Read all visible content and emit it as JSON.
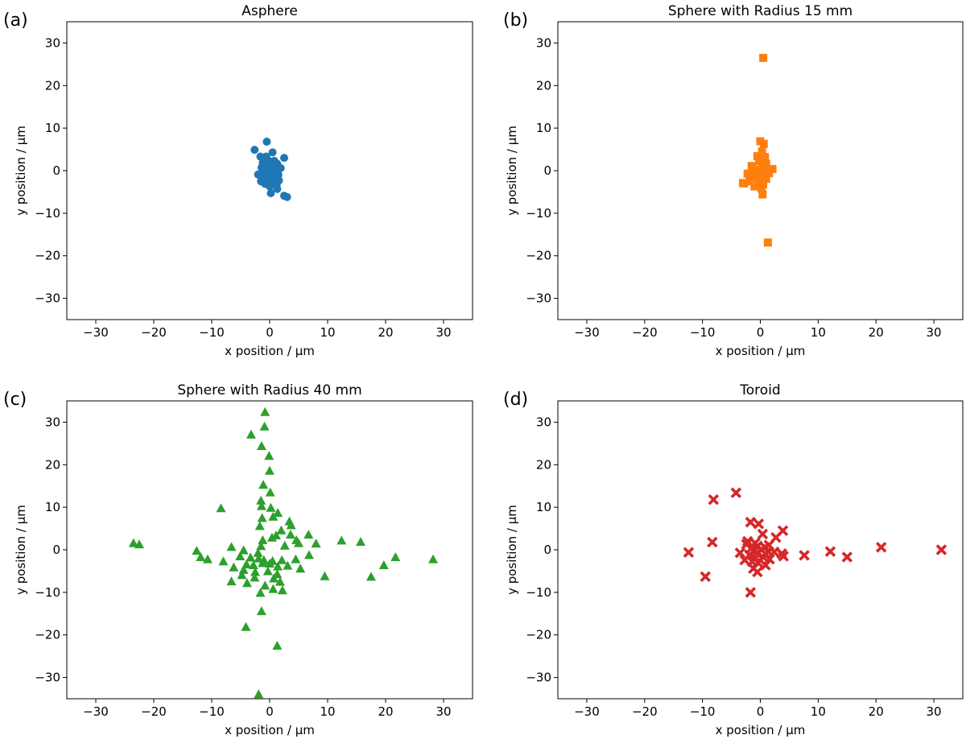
{
  "chart_data": [
    {
      "panel_label": "(a)",
      "type": "scatter",
      "title": "Asphere",
      "xlabel": "x position / µm",
      "ylabel": "y position / µm",
      "xlim": [
        -35,
        35
      ],
      "ylim": [
        -35,
        35
      ],
      "xticks": [
        -30,
        -20,
        -10,
        0,
        10,
        20,
        30
      ],
      "yticks": [
        -30,
        -20,
        -10,
        0,
        10,
        20,
        30
      ],
      "marker": "circle",
      "color": "#1f77b4",
      "points": [
        [
          -0.5,
          6.8
        ],
        [
          -2.6,
          4.9
        ],
        [
          0.5,
          4.3
        ],
        [
          -1.6,
          3.3
        ],
        [
          -0.6,
          3.3
        ],
        [
          2.5,
          3.0
        ],
        [
          -0.3,
          2.5
        ],
        [
          0.8,
          2.3
        ],
        [
          -1.2,
          1.9
        ],
        [
          1.3,
          1.6
        ],
        [
          -0.2,
          1.3
        ],
        [
          0.5,
          1.0
        ],
        [
          -1.4,
          0.7
        ],
        [
          1.9,
          0.6
        ],
        [
          -0.7,
          0.4
        ],
        [
          0.3,
          0.2
        ],
        [
          -0.1,
          0.0
        ],
        [
          1.0,
          -0.1
        ],
        [
          -1.1,
          -0.3
        ],
        [
          0.6,
          -0.5
        ],
        [
          -0.5,
          -0.8
        ],
        [
          -2.0,
          -0.9
        ],
        [
          1.5,
          -1.0
        ],
        [
          0.1,
          -1.3
        ],
        [
          -1.0,
          -1.6
        ],
        [
          0.9,
          -1.8
        ],
        [
          -0.3,
          -2.1
        ],
        [
          1.6,
          -2.3
        ],
        [
          -1.5,
          -2.5
        ],
        [
          0.4,
          -2.8
        ],
        [
          -0.8,
          -3.1
        ],
        [
          1.2,
          -3.4
        ],
        [
          0.0,
          -3.7
        ],
        [
          1.3,
          -4.3
        ],
        [
          0.2,
          -5.3
        ],
        [
          2.5,
          -5.9
        ],
        [
          3.0,
          -6.2
        ]
      ]
    },
    {
      "panel_label": "(b)",
      "type": "scatter",
      "title": "Sphere with Radius 15 mm",
      "xlabel": "x position / µm",
      "ylabel": "y position / µm",
      "xlim": [
        -35,
        35
      ],
      "ylim": [
        -35,
        35
      ],
      "xticks": [
        -30,
        -20,
        -10,
        0,
        10,
        20,
        30
      ],
      "yticks": [
        -30,
        -20,
        -10,
        0,
        10,
        20,
        30
      ],
      "marker": "square",
      "color": "#ff7f0e",
      "points": [
        [
          0.5,
          26.5
        ],
        [
          0.0,
          6.9
        ],
        [
          0.6,
          6.3
        ],
        [
          0.3,
          4.5
        ],
        [
          0.8,
          3.2
        ],
        [
          -0.5,
          3.4
        ],
        [
          -0.2,
          2.2
        ],
        [
          1.0,
          1.6
        ],
        [
          -1.5,
          1.1
        ],
        [
          0.4,
          1.0
        ],
        [
          2.1,
          0.4
        ],
        [
          -1.0,
          0.2
        ],
        [
          0.7,
          -0.1
        ],
        [
          -0.4,
          -0.4
        ],
        [
          1.5,
          -0.6
        ],
        [
          -2.2,
          -0.7
        ],
        [
          -0.8,
          -1.1
        ],
        [
          0.2,
          -1.3
        ],
        [
          -1.3,
          -1.6
        ],
        [
          1.0,
          -1.9
        ],
        [
          -2.8,
          -3.0
        ],
        [
          -3.0,
          -2.9
        ],
        [
          -1.8,
          -2.5
        ],
        [
          -0.3,
          -2.7
        ],
        [
          0.5,
          -3.2
        ],
        [
          -1.0,
          -3.7
        ],
        [
          0.2,
          -4.2
        ],
        [
          0.4,
          -5.6
        ],
        [
          1.3,
          -16.9
        ]
      ]
    },
    {
      "panel_label": "(c)",
      "type": "scatter",
      "title": "Sphere with Radius 40 mm",
      "xlabel": "x position / µm",
      "ylabel": "y position / µm",
      "xlim": [
        -35,
        35
      ],
      "ylim": [
        -35,
        35
      ],
      "xticks": [
        -30,
        -20,
        -10,
        0,
        10,
        20,
        30
      ],
      "yticks": [
        -30,
        -20,
        -10,
        0,
        10,
        20,
        30
      ],
      "marker": "triangle",
      "color": "#2ca02c",
      "points": [
        [
          -0.8,
          32.3
        ],
        [
          -0.9,
          28.9
        ],
        [
          -3.2,
          27.0
        ],
        [
          -1.4,
          24.3
        ],
        [
          -0.1,
          22.0
        ],
        [
          0.0,
          18.5
        ],
        [
          -1.1,
          15.2
        ],
        [
          0.1,
          13.4
        ],
        [
          -1.5,
          11.5
        ],
        [
          -1.4,
          10.2
        ],
        [
          -8.4,
          9.7
        ],
        [
          0.2,
          9.8
        ],
        [
          1.4,
          8.6
        ],
        [
          0.6,
          7.7
        ],
        [
          -1.3,
          7.4
        ],
        [
          3.4,
          6.6
        ],
        [
          3.7,
          5.7
        ],
        [
          -1.7,
          5.5
        ],
        [
          2.0,
          4.5
        ],
        [
          3.6,
          3.5
        ],
        [
          6.7,
          3.5
        ],
        [
          1.1,
          3.3
        ],
        [
          0.4,
          2.8
        ],
        [
          -1.2,
          2.2
        ],
        [
          4.6,
          2.2
        ],
        [
          12.4,
          2.1
        ],
        [
          15.7,
          1.8
        ],
        [
          -23.5,
          1.5
        ],
        [
          -22.5,
          1.2
        ],
        [
          5.0,
          1.5
        ],
        [
          8.0,
          1.4
        ],
        [
          -1.5,
          0.8
        ],
        [
          2.6,
          0.9
        ],
        [
          -6.6,
          0.6
        ],
        [
          -12.6,
          -0.3
        ],
        [
          -4.5,
          -0.2
        ],
        [
          -2.0,
          -0.8
        ],
        [
          6.8,
          -1.3
        ],
        [
          -11.9,
          -1.8
        ],
        [
          -10.7,
          -2.3
        ],
        [
          -8.0,
          -2.8
        ],
        [
          -5.1,
          -1.6
        ],
        [
          -3.3,
          -1.9
        ],
        [
          -1.9,
          -2.1
        ],
        [
          -1.0,
          -2.5
        ],
        [
          0.5,
          -2.7
        ],
        [
          2.1,
          -2.5
        ],
        [
          4.5,
          -2.3
        ],
        [
          21.7,
          -1.8
        ],
        [
          28.2,
          -2.3
        ],
        [
          19.7,
          -3.7
        ],
        [
          -6.2,
          -4.2
        ],
        [
          -4.0,
          -3.5
        ],
        [
          -2.8,
          -3.7
        ],
        [
          -1.2,
          -3.2
        ],
        [
          0.0,
          -3.3
        ],
        [
          1.4,
          -4.0
        ],
        [
          3.1,
          -3.8
        ],
        [
          5.3,
          -4.5
        ],
        [
          -4.5,
          -4.8
        ],
        [
          -2.5,
          -5.3
        ],
        [
          -0.3,
          -5.1
        ],
        [
          1.3,
          -5.8
        ],
        [
          -6.6,
          -7.5
        ],
        [
          -4.8,
          -6.0
        ],
        [
          -2.6,
          -6.6
        ],
        [
          0.7,
          -6.8
        ],
        [
          1.8,
          -7.6
        ],
        [
          9.5,
          -6.3
        ],
        [
          17.5,
          -6.4
        ],
        [
          -3.9,
          -7.9
        ],
        [
          -0.8,
          -8.5
        ],
        [
          0.6,
          -9.3
        ],
        [
          2.2,
          -9.6
        ],
        [
          -1.6,
          -10.2
        ],
        [
          -1.4,
          -14.5
        ],
        [
          -4.1,
          -18.2
        ],
        [
          1.3,
          -22.6
        ],
        [
          -1.9,
          -34.0
        ]
      ]
    },
    {
      "panel_label": "(d)",
      "type": "scatter",
      "title": "Toroid",
      "xlabel": "x position / µm",
      "ylabel": "y position / µm",
      "xlim": [
        -35,
        35
      ],
      "ylim": [
        -35,
        35
      ],
      "xticks": [
        -30,
        -20,
        -10,
        0,
        10,
        20,
        30
      ],
      "yticks": [
        -30,
        -20,
        -10,
        0,
        10,
        20,
        30
      ],
      "marker": "x-filled",
      "color": "#d62728",
      "points": [
        [
          -4.2,
          13.4
        ],
        [
          -8.1,
          11.8
        ],
        [
          -1.7,
          6.5
        ],
        [
          -0.3,
          6.1
        ],
        [
          3.9,
          4.5
        ],
        [
          0.4,
          3.7
        ],
        [
          2.7,
          2.9
        ],
        [
          -2.2,
          2.0
        ],
        [
          -8.3,
          1.8
        ],
        [
          -0.9,
          1.6
        ],
        [
          -2.4,
          1.3
        ],
        [
          1.5,
          1.1
        ],
        [
          -0.5,
          0.9
        ],
        [
          0.8,
          0.6
        ],
        [
          -1.6,
          0.3
        ],
        [
          0.2,
          0.1
        ],
        [
          -1.0,
          -0.2
        ],
        [
          1.3,
          -0.3
        ],
        [
          2.4,
          -0.5
        ],
        [
          3.7,
          -0.9
        ],
        [
          4.0,
          -1.5
        ],
        [
          -3.5,
          -0.7
        ],
        [
          -0.6,
          -0.7
        ],
        [
          1.0,
          -1.1
        ],
        [
          -1.9,
          -1.2
        ],
        [
          0.4,
          -1.6
        ],
        [
          -0.8,
          -2.0
        ],
        [
          1.6,
          -2.2
        ],
        [
          -2.7,
          -2.4
        ],
        [
          -1.4,
          -2.8
        ],
        [
          -0.4,
          -3.0
        ],
        [
          0.9,
          -3.6
        ],
        [
          -1.2,
          -4.4
        ],
        [
          -0.5,
          -5.2
        ],
        [
          -12.4,
          -0.6
        ],
        [
          -9.5,
          -6.3
        ],
        [
          7.6,
          -1.3
        ],
        [
          12.1,
          -0.4
        ],
        [
          15.0,
          -1.7
        ],
        [
          20.9,
          0.6
        ],
        [
          31.3,
          0.0
        ],
        [
          -1.7,
          -10.0
        ]
      ]
    }
  ]
}
